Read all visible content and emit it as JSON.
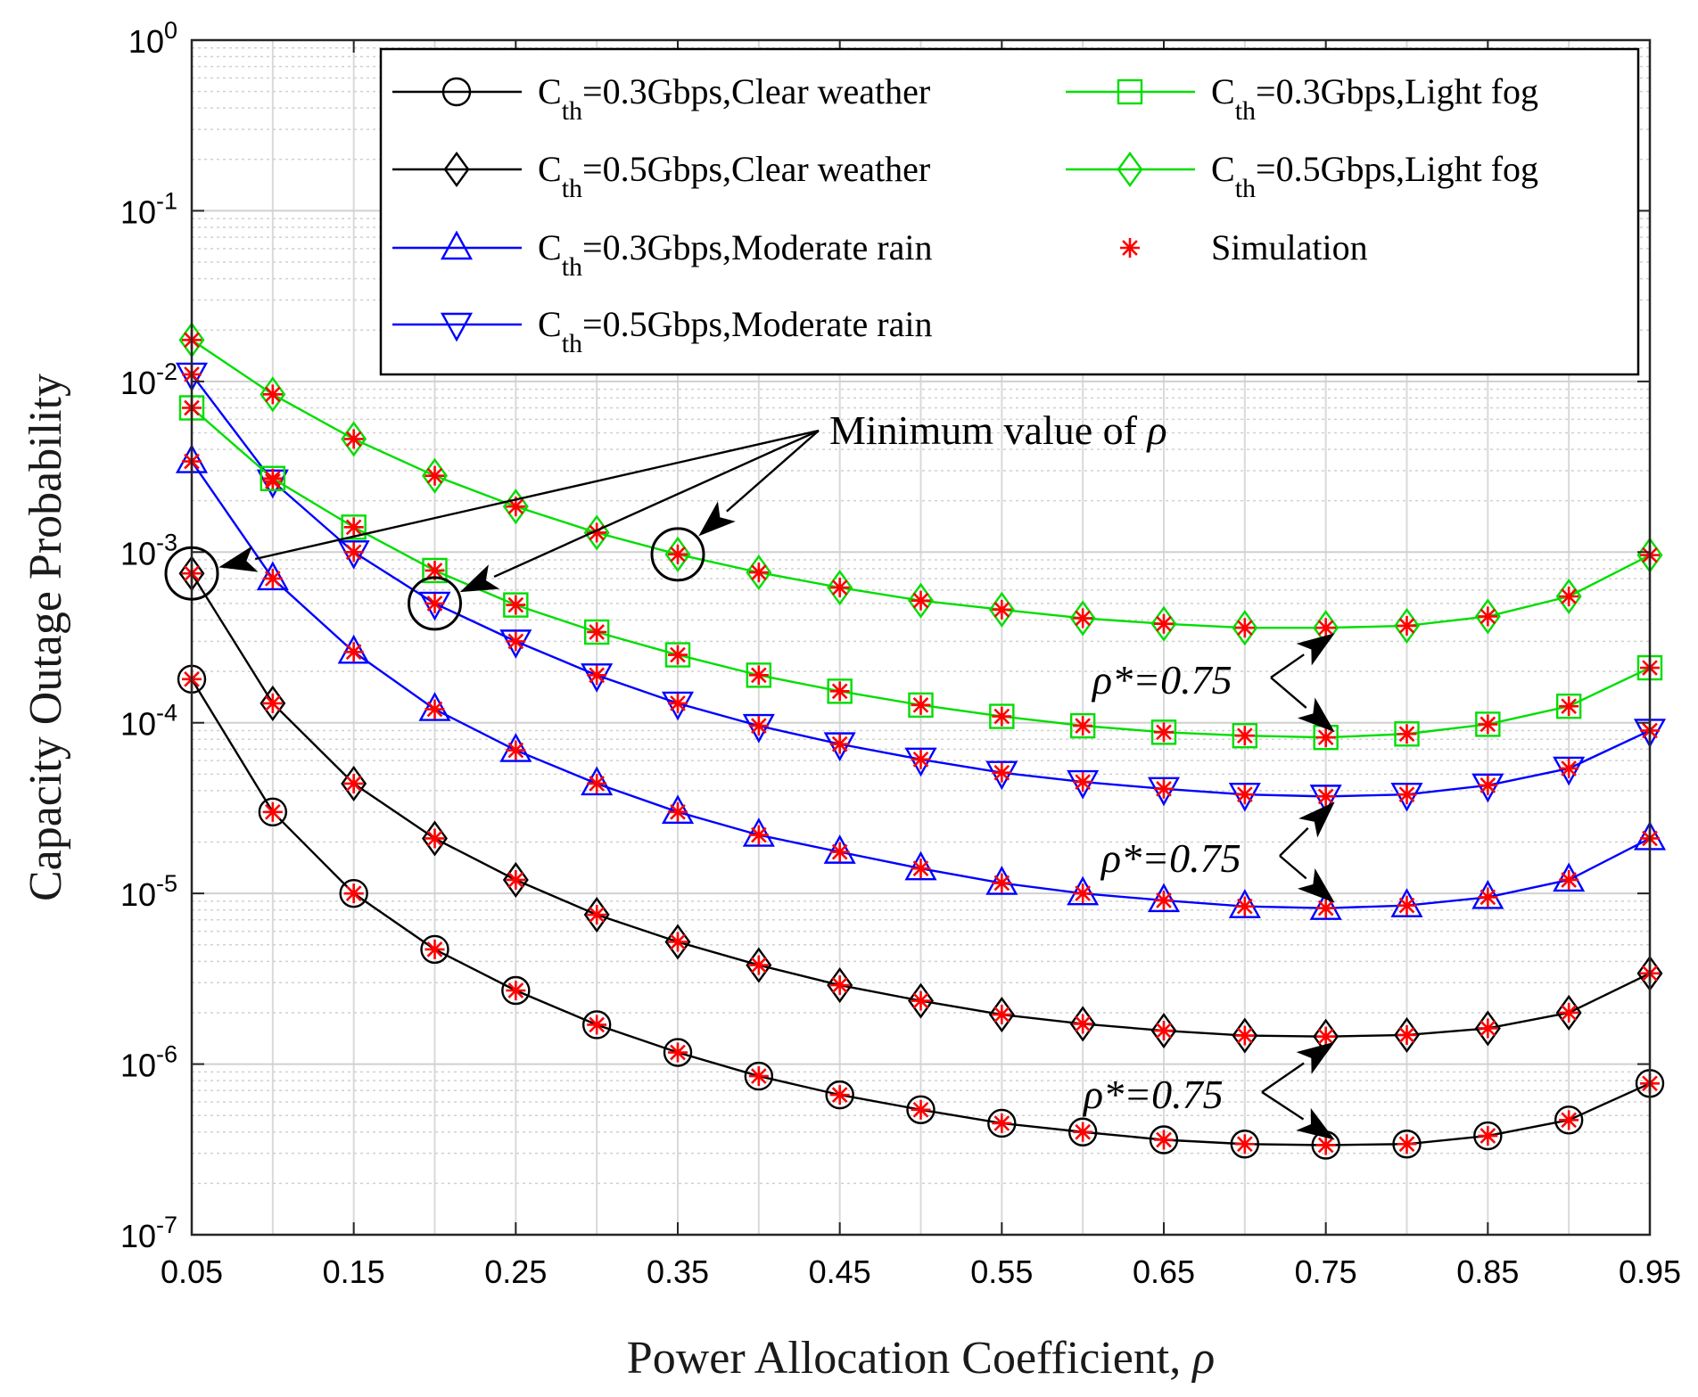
{
  "chart_data": {
    "type": "line",
    "xlabel_main": "Power Allocation Coefficient, ",
    "xlabel_symbol": "ρ",
    "ylabel": "Capacity Outage Probability",
    "yscale": "log",
    "xlim": [
      0.05,
      0.95
    ],
    "ylim": [
      1e-07,
      1
    ],
    "grid": true,
    "legend_placement": "top-right",
    "x_ticks": [
      "0.05",
      "0.15",
      "0.25",
      "0.35",
      "0.45",
      "0.55",
      "0.65",
      "0.75",
      "0.85",
      "0.95"
    ],
    "y_ticks": [
      {
        "base": "10",
        "exp": "0",
        "value": 1
      },
      {
        "base": "10",
        "exp": "-1",
        "value": 0.1
      },
      {
        "base": "10",
        "exp": "-2",
        "value": 0.01
      },
      {
        "base": "10",
        "exp": "-3",
        "value": 0.001
      },
      {
        "base": "10",
        "exp": "-4",
        "value": 0.0001
      },
      {
        "base": "10",
        "exp": "-5",
        "value": 1e-05
      },
      {
        "base": "10",
        "exp": "-6",
        "value": 1e-06
      },
      {
        "base": "10",
        "exp": "-7",
        "value": 1e-07
      }
    ],
    "x": [
      0.05,
      0.1,
      0.15,
      0.2,
      0.25,
      0.3,
      0.35,
      0.4,
      0.45,
      0.5,
      0.55,
      0.6,
      0.65,
      0.7,
      0.75,
      0.8,
      0.85,
      0.9,
      0.95
    ],
    "series": [
      {
        "name_main": "C",
        "name_sub": "th",
        "name_rest": "=0.3Gbps,Clear weather",
        "color": "#000000",
        "marker": "circle",
        "values": [
          0.00018,
          3e-05,
          1e-05,
          4.7e-06,
          2.7e-06,
          1.7e-06,
          1.17e-06,
          8.5e-07,
          6.6e-07,
          5.4e-07,
          4.5e-07,
          4e-07,
          3.6e-07,
          3.4e-07,
          3.35e-07,
          3.4e-07,
          3.8e-07,
          4.7e-07,
          7.7e-07
        ]
      },
      {
        "name_main": "C",
        "name_sub": "th",
        "name_rest": "=0.5Gbps,Clear weather",
        "color": "#000000",
        "marker": "diamond",
        "values": [
          0.00075,
          0.00013,
          4.4e-05,
          2.1e-05,
          1.2e-05,
          7.5e-06,
          5.2e-06,
          3.8e-06,
          2.9e-06,
          2.35e-06,
          1.95e-06,
          1.72e-06,
          1.57e-06,
          1.47e-06,
          1.45e-06,
          1.48e-06,
          1.62e-06,
          2e-06,
          3.4e-06
        ]
      },
      {
        "name_main": "C",
        "name_sub": "th",
        "name_rest": "=0.3Gbps,Moderate rain",
        "color": "#0000ff",
        "marker": "triangle-up",
        "values": [
          0.0034,
          0.0007,
          0.00026,
          0.00012,
          6.9e-05,
          4.4e-05,
          3e-05,
          2.2e-05,
          1.75e-05,
          1.4e-05,
          1.15e-05,
          1e-05,
          9.1e-06,
          8.4e-06,
          8.2e-06,
          8.5e-06,
          9.5e-06,
          1.2e-05,
          2.1e-05
        ]
      },
      {
        "name_main": "C",
        "name_sub": "th",
        "name_rest": "=0.5Gbps,Moderate rain",
        "color": "#0000ff",
        "marker": "triangle-down",
        "values": [
          0.011,
          0.0026,
          0.001,
          0.0005,
          0.0003,
          0.00019,
          0.00013,
          9.6e-05,
          7.5e-05,
          6.1e-05,
          5.1e-05,
          4.5e-05,
          4.1e-05,
          3.8e-05,
          3.7e-05,
          3.8e-05,
          4.3e-05,
          5.4e-05,
          9e-05
        ]
      },
      {
        "name_main": "C",
        "name_sub": "th",
        "name_rest": "=0.3Gbps,Light fog",
        "color": "#00dd00",
        "marker": "square",
        "values": [
          0.007,
          0.0027,
          0.0014,
          0.00078,
          0.00049,
          0.00034,
          0.00025,
          0.00019,
          0.000153,
          0.000127,
          0.000109,
          9.6e-05,
          8.8e-05,
          8.4e-05,
          8.2e-05,
          8.6e-05,
          9.8e-05,
          0.000125,
          0.00021
        ]
      },
      {
        "name_main": "C",
        "name_sub": "th",
        "name_rest": "=0.5Gbps,Light fog",
        "color": "#00dd00",
        "marker": "diamond",
        "values": [
          0.0175,
          0.0084,
          0.0046,
          0.0028,
          0.00185,
          0.0013,
          0.00097,
          0.00076,
          0.00062,
          0.00052,
          0.00046,
          0.00041,
          0.00038,
          0.00036,
          0.00036,
          0.00037,
          0.00042,
          0.00055,
          0.00096
        ]
      }
    ],
    "simulation": {
      "name": "Simulation",
      "color": "#ff0000",
      "marker": "asterisk"
    },
    "annotations": {
      "minimum": {
        "text_main": "Minimum value of ",
        "symbol": "ρ",
        "points": [
          {
            "x": 0.05,
            "y": 0.00075
          },
          {
            "x": 0.2,
            "y": 0.0005
          },
          {
            "x": 0.35,
            "y": 0.00097
          }
        ]
      },
      "optimum": [
        {
          "text": "ρ*=0.75",
          "points": [
            {
              "x": 0.75,
              "y": 0.00036
            },
            {
              "x": 0.75,
              "y": 8.2e-05
            }
          ]
        },
        {
          "text": "ρ*=0.75",
          "points": [
            {
              "x": 0.75,
              "y": 3.7e-05
            },
            {
              "x": 0.75,
              "y": 8.2e-06
            }
          ]
        },
        {
          "text": "ρ*=0.75",
          "points": [
            {
              "x": 0.75,
              "y": 1.45e-06
            },
            {
              "x": 0.75,
              "y": 3.35e-07
            }
          ]
        }
      ]
    }
  }
}
